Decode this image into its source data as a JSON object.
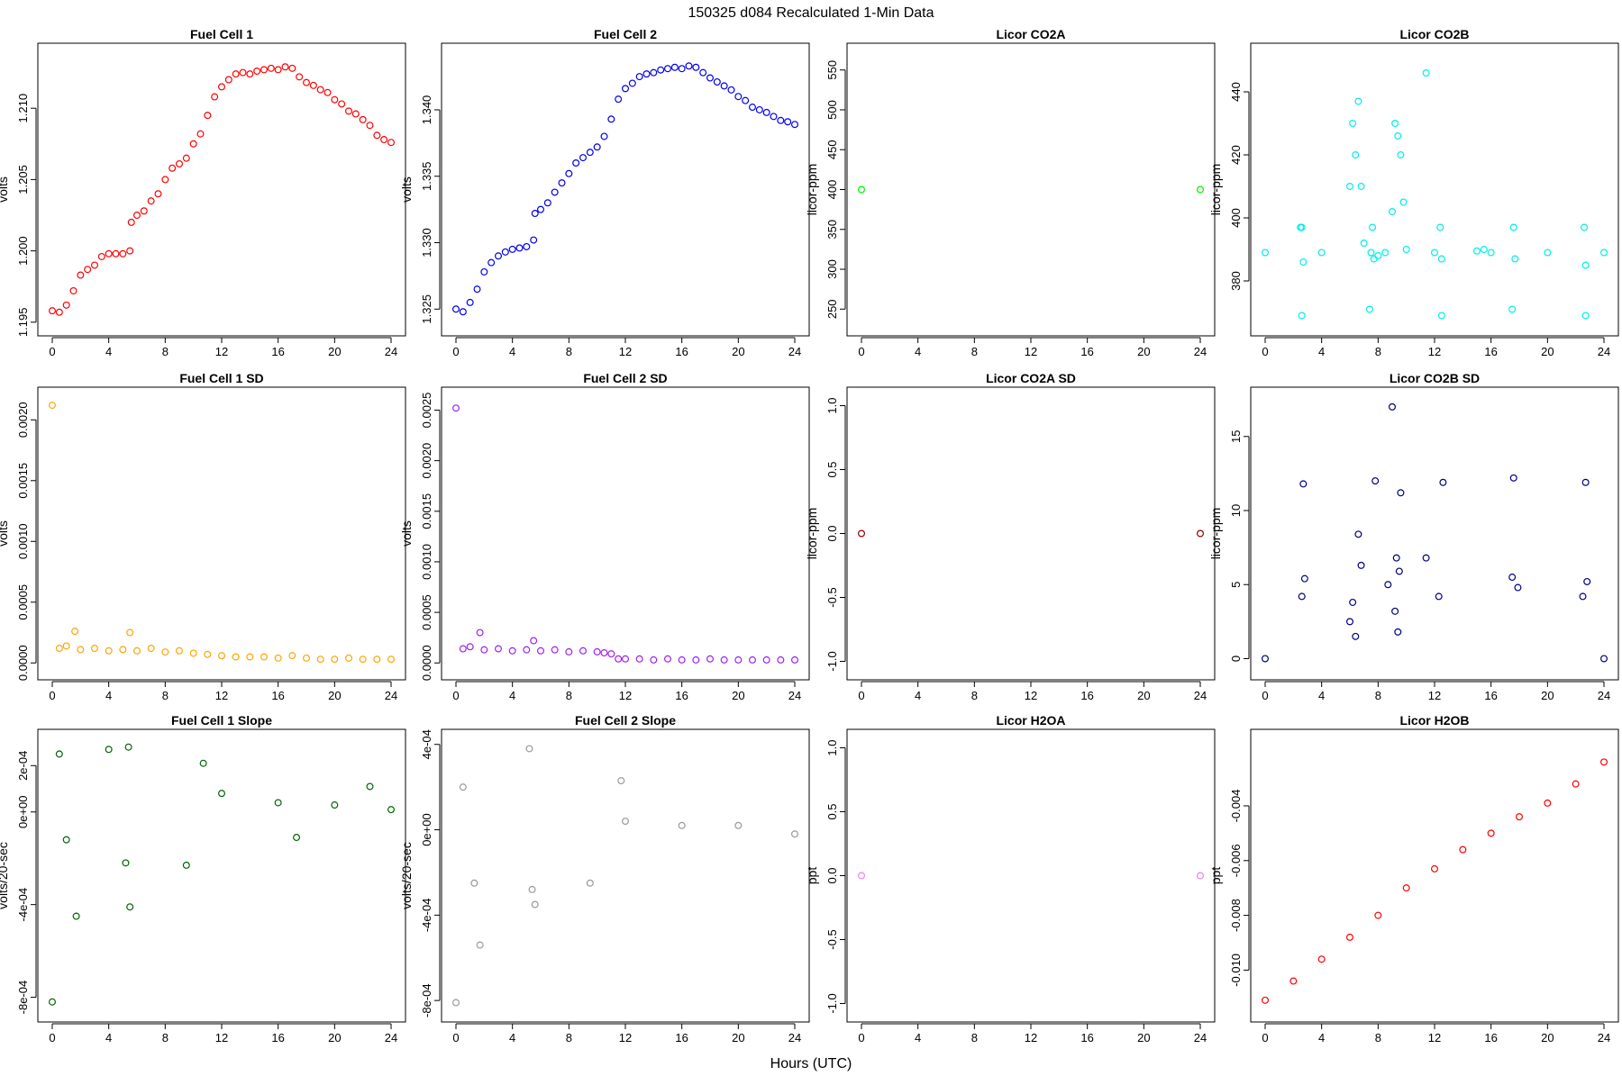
{
  "header": {
    "title": "150325   d084   Recalculated 1-Min Data",
    "xlabel": "Hours (UTC)"
  },
  "chart_data": [
    {
      "type": "scatter",
      "title": "Fuel Cell 1",
      "ylabel": "volts",
      "color": "#ff0000",
      "xlim": [
        0,
        24
      ],
      "ylim": [
        1.1948,
        1.2138
      ],
      "xticks": [
        0,
        4,
        8,
        12,
        16,
        20,
        24
      ],
      "yticks": [
        {
          "v": 1.195,
          "label": "1.195"
        },
        {
          "v": 1.2,
          "label": "1.200"
        },
        {
          "v": 1.205,
          "label": "1.205"
        },
        {
          "v": 1.21,
          "label": "1.210"
        }
      ],
      "x": [
        0,
        0.5,
        1,
        1.5,
        2,
        2.5,
        3,
        3.5,
        4,
        4.5,
        5,
        5.5,
        5.6,
        6,
        6.5,
        7,
        7.5,
        8,
        8.5,
        9,
        9.5,
        10,
        10.5,
        11,
        11.5,
        12,
        12.5,
        13,
        13.5,
        14,
        14.5,
        15,
        15.5,
        16,
        16.5,
        17,
        17.5,
        18,
        18.5,
        19,
        19.5,
        20,
        20.5,
        21,
        21.5,
        22,
        22.5,
        23,
        23.5,
        24
      ],
      "y": [
        1.1958,
        1.1957,
        1.1962,
        1.1972,
        1.1983,
        1.1987,
        1.199,
        1.1996,
        1.1998,
        1.1998,
        1.1998,
        1.2,
        1.202,
        1.2025,
        1.2028,
        1.2035,
        1.204,
        1.205,
        1.2058,
        1.2061,
        1.2065,
        1.2075,
        1.2082,
        1.2095,
        1.2108,
        1.2115,
        1.212,
        1.2124,
        1.2125,
        1.2124,
        1.2126,
        1.2127,
        1.2128,
        1.2127,
        1.2129,
        1.2128,
        1.2122,
        1.2118,
        1.2116,
        1.2113,
        1.2111,
        1.2106,
        1.2103,
        1.2098,
        1.2096,
        1.2092,
        1.2088,
        1.2081,
        1.2078,
        1.2076
      ]
    },
    {
      "type": "scatter",
      "title": "Fuel Cell 2",
      "ylabel": "volts",
      "color": "#0000ee",
      "xlim": [
        0,
        24
      ],
      "ylim": [
        1.3238,
        1.3442
      ],
      "xticks": [
        0,
        4,
        8,
        12,
        16,
        20,
        24
      ],
      "yticks": [
        {
          "v": 1.325,
          "label": "1.325"
        },
        {
          "v": 1.33,
          "label": "1.330"
        },
        {
          "v": 1.335,
          "label": "1.335"
        },
        {
          "v": 1.34,
          "label": "1.340"
        }
      ],
      "x": [
        0,
        0.5,
        1,
        1.5,
        2,
        2.5,
        3,
        3.5,
        4,
        4.5,
        5,
        5.5,
        5.6,
        6,
        6.5,
        7,
        7.5,
        8,
        8.5,
        9,
        9.5,
        10,
        10.5,
        11,
        11.5,
        12,
        12.5,
        13,
        13.5,
        14,
        14.5,
        15,
        15.5,
        16,
        16.5,
        17,
        17.5,
        18,
        18.5,
        19,
        19.5,
        20,
        20.5,
        21,
        21.5,
        22,
        22.5,
        23,
        23.5,
        24
      ],
      "y": [
        1.325,
        1.3248,
        1.3255,
        1.3265,
        1.3278,
        1.3285,
        1.329,
        1.3293,
        1.3295,
        1.3296,
        1.3297,
        1.3302,
        1.3322,
        1.3325,
        1.333,
        1.3338,
        1.3345,
        1.3352,
        1.336,
        1.3364,
        1.3368,
        1.3372,
        1.338,
        1.3393,
        1.3408,
        1.3416,
        1.342,
        1.3425,
        1.3427,
        1.3428,
        1.343,
        1.3431,
        1.3432,
        1.3431,
        1.3433,
        1.3432,
        1.3428,
        1.3424,
        1.3421,
        1.3418,
        1.3415,
        1.341,
        1.3407,
        1.3402,
        1.34,
        1.3398,
        1.3395,
        1.3392,
        1.3391,
        1.3389
      ]
    },
    {
      "type": "scatter",
      "title": "Licor CO2A",
      "ylabel": "licor-ppm",
      "color": "#00ee00",
      "xlim": [
        0,
        24
      ],
      "ylim": [
        230,
        570
      ],
      "xticks": [
        0,
        4,
        8,
        12,
        16,
        20,
        24
      ],
      "yticks": [
        {
          "v": 250,
          "label": "250"
        },
        {
          "v": 300,
          "label": "300"
        },
        {
          "v": 350,
          "label": "350"
        },
        {
          "v": 400,
          "label": "400"
        },
        {
          "v": 450,
          "label": "450"
        },
        {
          "v": 500,
          "label": "500"
        },
        {
          "v": 550,
          "label": "550"
        }
      ],
      "x": [
        0,
        24
      ],
      "y": [
        400,
        400
      ]
    },
    {
      "type": "scatter",
      "title": "Licor CO2B",
      "ylabel": "licor-ppm",
      "color": "#00eeee",
      "xlim": [
        0,
        24
      ],
      "ylim": [
        366,
        452
      ],
      "xticks": [
        0,
        4,
        8,
        12,
        16,
        20,
        24
      ],
      "yticks": [
        {
          "v": 380,
          "label": "380"
        },
        {
          "v": 400,
          "label": "400"
        },
        {
          "v": 420,
          "label": "420"
        },
        {
          "v": 440,
          "label": "440"
        }
      ],
      "x": [
        0,
        4,
        6,
        6.2,
        6.4,
        6.6,
        6.8,
        7,
        7.5,
        8,
        8.5,
        9,
        9.2,
        9.4,
        9.6,
        9.8,
        10,
        12,
        15,
        15.5,
        16,
        20,
        24,
        2.5,
        2.6,
        2.7,
        7.6,
        7.7,
        11.4,
        12.4,
        12.5,
        17.6,
        17.7,
        22.6,
        22.7,
        2.6,
        7.4,
        12.5,
        17.5,
        22.7
      ],
      "y": [
        389,
        389,
        410,
        430,
        420,
        437,
        410,
        392,
        389,
        388,
        389,
        402,
        430,
        426,
        420,
        405,
        390,
        389,
        389.5,
        390,
        389,
        389,
        389,
        397,
        397,
        386,
        397,
        387,
        446,
        397,
        387,
        397,
        387,
        397,
        385,
        369,
        371,
        369,
        371,
        369
      ]
    },
    {
      "type": "scatter",
      "title": "Fuel Cell 1 SD",
      "ylabel": "volts",
      "color": "#ffa500",
      "xlim": [
        0,
        24
      ],
      "ylim": [
        -5e-05,
        0.00218
      ],
      "xticks": [
        0,
        4,
        8,
        12,
        16,
        20,
        24
      ],
      "yticks": [
        {
          "v": 0.0,
          "label": "0.0000"
        },
        {
          "v": 0.0005,
          "label": "0.0005"
        },
        {
          "v": 0.001,
          "label": "0.0010"
        },
        {
          "v": 0.0015,
          "label": "0.0015"
        },
        {
          "v": 0.002,
          "label": "0.0020"
        }
      ],
      "x": [
        0,
        0.5,
        1,
        1.6,
        2,
        3,
        4,
        5,
        5.5,
        6,
        7,
        8,
        9,
        10,
        11,
        12,
        13,
        14,
        15,
        16,
        17,
        18,
        19,
        20,
        21,
        22,
        23,
        24
      ],
      "y": [
        0.00212,
        0.00012,
        0.00014,
        0.00026,
        0.00011,
        0.00012,
        0.0001,
        0.00011,
        0.00025,
        0.0001,
        0.00012,
        9e-05,
        0.0001,
        8e-05,
        7e-05,
        6e-05,
        5e-05,
        5e-05,
        5e-05,
        4e-05,
        6e-05,
        4e-05,
        3e-05,
        3e-05,
        4e-05,
        3e-05,
        3e-05,
        3e-05
      ]
    },
    {
      "type": "scatter",
      "title": "Fuel Cell 2 SD",
      "ylabel": "volts",
      "color": "#a020f0",
      "xlim": [
        0,
        24
      ],
      "ylim": [
        -6e-05,
        0.00262
      ],
      "xticks": [
        0,
        4,
        8,
        12,
        16,
        20,
        24
      ],
      "yticks": [
        {
          "v": 0.0,
          "label": "0.0000"
        },
        {
          "v": 0.0005,
          "label": "0.0005"
        },
        {
          "v": 0.001,
          "label": "0.0010"
        },
        {
          "v": 0.0015,
          "label": "0.0015"
        },
        {
          "v": 0.002,
          "label": "0.0020"
        },
        {
          "v": 0.0025,
          "label": "0.0025"
        }
      ],
      "x": [
        0,
        0.5,
        1,
        1.7,
        2,
        3,
        4,
        5,
        5.5,
        6,
        7,
        8,
        9,
        10,
        10.5,
        11,
        11.5,
        12,
        13,
        14,
        15,
        16,
        17,
        18,
        19,
        20,
        21,
        22,
        23,
        24
      ],
      "y": [
        0.00252,
        0.00014,
        0.00016,
        0.0003,
        0.00013,
        0.00014,
        0.00012,
        0.00013,
        0.00022,
        0.00012,
        0.00013,
        0.00011,
        0.00012,
        0.00011,
        0.0001,
        9e-05,
        4e-05,
        4e-05,
        4e-05,
        3e-05,
        4e-05,
        3e-05,
        3e-05,
        4e-05,
        3e-05,
        3e-05,
        3e-05,
        3e-05,
        3e-05,
        3e-05
      ]
    },
    {
      "type": "scatter",
      "title": "Licor CO2A SD",
      "ylabel": "licor-ppm",
      "color": "#8b0000",
      "xlim": [
        0,
        24
      ],
      "ylim": [
        -1.06,
        1.06
      ],
      "xticks": [
        0,
        4,
        8,
        12,
        16,
        20,
        24
      ],
      "yticks": [
        {
          "v": -1.0,
          "label": "-1.0"
        },
        {
          "v": -0.5,
          "label": "-0.5"
        },
        {
          "v": 0.0,
          "label": "0.0"
        },
        {
          "v": 0.5,
          "label": "0.5"
        },
        {
          "v": 1.0,
          "label": "1.0"
        }
      ],
      "x": [
        0,
        24
      ],
      "y": [
        0,
        0
      ]
    },
    {
      "type": "scatter",
      "title": "Licor CO2B SD",
      "ylabel": "licor-ppm",
      "color": "#000080",
      "xlim": [
        0,
        24
      ],
      "ylim": [
        -0.7,
        17.6
      ],
      "xticks": [
        0,
        4,
        8,
        12,
        16,
        20,
        24
      ],
      "yticks": [
        {
          "v": 0,
          "label": "0"
        },
        {
          "v": 5,
          "label": "5"
        },
        {
          "v": 10,
          "label": "10"
        },
        {
          "v": 15,
          "label": "15"
        }
      ],
      "x": [
        0,
        2.6,
        2.7,
        2.8,
        6.0,
        6.2,
        6.4,
        6.6,
        6.8,
        7.8,
        8.7,
        9.0,
        9.2,
        9.4,
        9.6,
        9.3,
        9.5,
        11.4,
        12.3,
        12.6,
        17.5,
        17.6,
        17.9,
        22.5,
        22.7,
        22.8,
        24
      ],
      "y": [
        0,
        4.2,
        11.8,
        5.4,
        2.5,
        3.8,
        1.5,
        8.4,
        6.3,
        12.0,
        5.0,
        17.0,
        3.2,
        1.8,
        11.2,
        6.8,
        5.9,
        6.8,
        4.2,
        11.9,
        5.5,
        12.2,
        4.8,
        4.2,
        11.9,
        5.2,
        0
      ]
    },
    {
      "type": "scatter",
      "title": "Fuel Cell 1 Slope",
      "ylabel": "volts/20-sec",
      "color": "#006400",
      "xlim": [
        0,
        24
      ],
      "ylim": [
        -0.00086,
        0.00031
      ],
      "xticks": [
        0,
        4,
        8,
        12,
        16,
        20,
        24
      ],
      "yticks": [
        {
          "v": -0.0008,
          "label": "-8e-04"
        },
        {
          "v": -0.0004,
          "label": "-4e-04"
        },
        {
          "v": 0,
          "label": "0e+00"
        },
        {
          "v": 0.0002,
          "label": "2e-04"
        }
      ],
      "x": [
        0,
        0.5,
        1,
        1.7,
        4,
        5.2,
        5.4,
        5.5,
        9.5,
        10.7,
        12,
        16,
        17.3,
        20,
        22.5,
        24
      ],
      "y": [
        -0.00082,
        0.00025,
        -0.00012,
        -0.00045,
        0.00027,
        -0.00022,
        0.00028,
        -0.00041,
        -0.00023,
        0.00021,
        8e-05,
        4e-05,
        -0.00011,
        3e-05,
        0.00011,
        1e-05
      ]
    },
    {
      "type": "scatter",
      "title": "Fuel Cell 2 Slope",
      "ylabel": "volts/20-sec",
      "color": "#999999",
      "xlim": [
        0,
        24
      ],
      "ylim": [
        -0.00085,
        0.00042
      ],
      "xticks": [
        0,
        4,
        8,
        12,
        16,
        20,
        24
      ],
      "yticks": [
        {
          "v": -0.0008,
          "label": "-8e-04"
        },
        {
          "v": -0.0004,
          "label": "-4e-04"
        },
        {
          "v": 0,
          "label": "0e+00"
        },
        {
          "v": 0.0004,
          "label": "4e-04"
        }
      ],
      "x": [
        0,
        0.5,
        1.3,
        1.7,
        5.2,
        5.4,
        5.6,
        9.5,
        11.7,
        12,
        16,
        20,
        24
      ],
      "y": [
        -0.00081,
        0.0002,
        -0.00025,
        -0.00054,
        0.00038,
        -0.00028,
        -0.00035,
        -0.00025,
        0.00023,
        4e-05,
        2e-05,
        2e-05,
        -2e-05
      ]
    },
    {
      "type": "scatter",
      "title": "Licor H2OA",
      "ylabel": "ppt",
      "color": "#ee82ee",
      "xlim": [
        0,
        24
      ],
      "ylim": [
        -1.06,
        1.06
      ],
      "xticks": [
        0,
        4,
        8,
        12,
        16,
        20,
        24
      ],
      "yticks": [
        {
          "v": -1.0,
          "label": "-1.0"
        },
        {
          "v": -0.5,
          "label": "-0.5"
        },
        {
          "v": 0.0,
          "label": "0.0"
        },
        {
          "v": 0.5,
          "label": "0.5"
        },
        {
          "v": 1.0,
          "label": "1.0"
        }
      ],
      "x": [
        0,
        24
      ],
      "y": [
        0,
        0
      ]
    },
    {
      "type": "scatter",
      "title": "Licor H2OB",
      "ylabel": "ppt",
      "color": "#ff0000",
      "xlim": [
        0,
        24
      ],
      "ylim": [
        -0.0115,
        -0.0016
      ],
      "xticks": [
        0,
        4,
        8,
        12,
        16,
        20,
        24
      ],
      "yticks": [
        {
          "v": -0.01,
          "label": "-0.010"
        },
        {
          "v": -0.008,
          "label": "-0.008"
        },
        {
          "v": -0.006,
          "label": "-0.006"
        },
        {
          "v": -0.004,
          "label": "-0.004"
        }
      ],
      "x": [
        0,
        2,
        4,
        6,
        8,
        10,
        12,
        14,
        16,
        18,
        20,
        22,
        24
      ],
      "y": [
        -0.0111,
        -0.0104,
        -0.0096,
        -0.0088,
        -0.008,
        -0.007,
        -0.0063,
        -0.0056,
        -0.005,
        -0.0044,
        -0.0039,
        -0.0032,
        -0.0024
      ]
    }
  ]
}
